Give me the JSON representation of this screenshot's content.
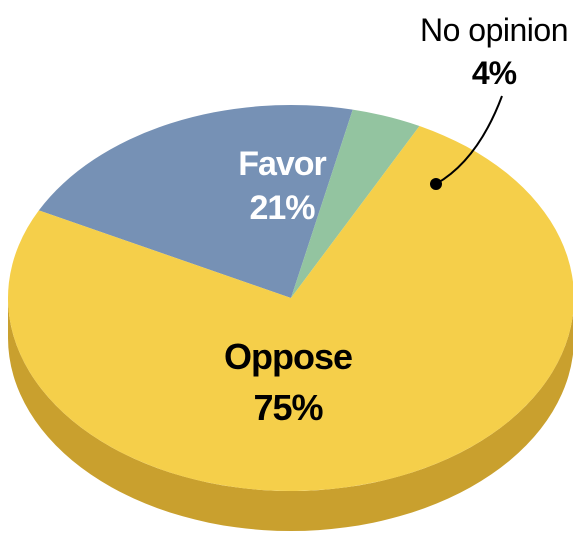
{
  "chart_data": {
    "type": "pie",
    "title": "",
    "slices": [
      {
        "label": "Oppose",
        "value": 75,
        "value_text": "75%",
        "color": "#F5CF4A"
      },
      {
        "label": "Favor",
        "value": 21,
        "value_text": "21%",
        "color": "#7691B5"
      },
      {
        "label": "No opinion",
        "value": 4,
        "value_text": "4%",
        "color": "#93C4A0"
      }
    ],
    "style": "3d",
    "side_colors": {
      "Oppose": "#C9A02E",
      "Favor": "#5A7396",
      "No opinion": "#6E9E7C"
    },
    "label_colors": {
      "inside": "#ffffff",
      "Oppose": "#000000",
      "outside": "#000000"
    }
  }
}
